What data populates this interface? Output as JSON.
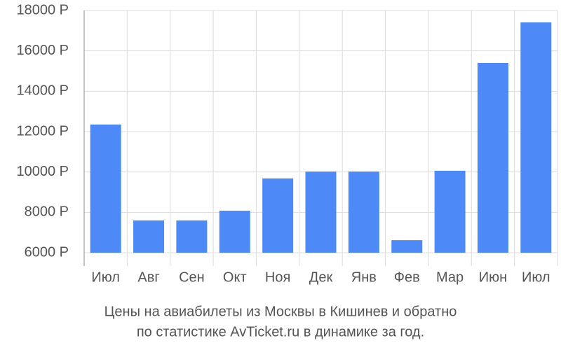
{
  "chart_data": {
    "type": "bar",
    "categories": [
      "Июл",
      "Авг",
      "Сен",
      "Окт",
      "Ноя",
      "Дек",
      "Янв",
      "Фев",
      "Мар",
      "Июн",
      "Июл"
    ],
    "values": [
      12350,
      7600,
      7600,
      8080,
      9680,
      10020,
      10020,
      6620,
      10060,
      15400,
      17410
    ],
    "color": "#4d8af7",
    "ylim": [
      6000,
      18000
    ],
    "yticks": [
      {
        "value": 6000,
        "label": "6000 Р"
      },
      {
        "value": 8000,
        "label": "8000 Р"
      },
      {
        "value": 10000,
        "label": "10000 Р"
      },
      {
        "value": 12000,
        "label": "12000 Р"
      },
      {
        "value": 14000,
        "label": "14000 Р"
      },
      {
        "value": 16000,
        "label": "16000 Р"
      },
      {
        "value": 18000,
        "label": "18000 Р"
      }
    ],
    "grid": true,
    "caption": [
      "Цены на авиабилеты из Москвы в Кишинев и обратно",
      "по статистике AvTicket.ru в динамике за год."
    ]
  }
}
